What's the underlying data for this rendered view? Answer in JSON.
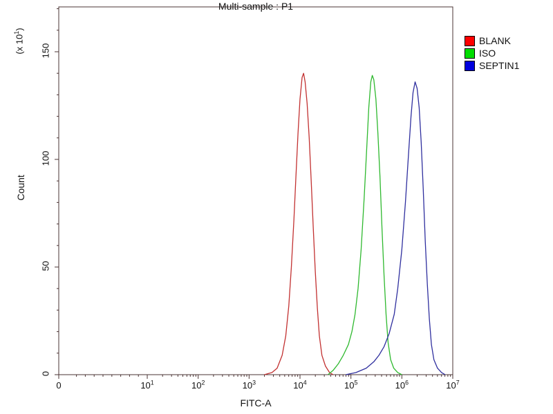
{
  "chart_data": {
    "type": "line",
    "subtype": "flow-cytometry-histogram-overlay",
    "title": "Multi-sample : P1",
    "xlabel": "FITC-A",
    "ylabel": "Count",
    "y_multiplier": {
      "base": "(x 10",
      "exp": "1",
      "close": ")"
    },
    "x_scale": "log",
    "x_ticks": [
      {
        "label": "0"
      },
      {
        "base": "10",
        "exp": "1"
      },
      {
        "base": "10",
        "exp": "2"
      },
      {
        "base": "10",
        "exp": "3"
      },
      {
        "base": "10",
        "exp": "4"
      },
      {
        "base": "10",
        "exp": "5"
      },
      {
        "base": "10",
        "exp": "6"
      },
      {
        "base": "10",
        "exp": "7"
      }
    ],
    "y_ticks": [
      0,
      50,
      100,
      150
    ],
    "ylim": [
      0,
      170
    ],
    "grid": false,
    "frame_color": "#4a3333",
    "legend_position": "top-right",
    "legend": [
      {
        "name": "BLANK",
        "color": "#ff0000"
      },
      {
        "name": "ISO",
        "color": "#00dd00"
      },
      {
        "name": "SEPTIN1",
        "color": "#0000dd"
      }
    ],
    "series": [
      {
        "name": "BLANK",
        "color": "#c23030",
        "peak_x": 11000,
        "peak_count": 140,
        "points_log10x_count": [
          [
            3.3,
            0
          ],
          [
            3.45,
            1
          ],
          [
            3.55,
            3
          ],
          [
            3.65,
            9
          ],
          [
            3.72,
            18
          ],
          [
            3.78,
            32
          ],
          [
            3.83,
            50
          ],
          [
            3.88,
            72
          ],
          [
            3.92,
            92
          ],
          [
            3.96,
            112
          ],
          [
            4.0,
            128
          ],
          [
            4.04,
            138
          ],
          [
            4.07,
            140
          ],
          [
            4.1,
            136
          ],
          [
            4.14,
            126
          ],
          [
            4.18,
            110
          ],
          [
            4.22,
            90
          ],
          [
            4.26,
            68
          ],
          [
            4.3,
            48
          ],
          [
            4.34,
            31
          ],
          [
            4.38,
            18
          ],
          [
            4.43,
            9
          ],
          [
            4.5,
            4
          ],
          [
            4.58,
            1
          ],
          [
            4.65,
            0
          ]
        ]
      },
      {
        "name": "ISO",
        "color": "#2db82d",
        "peak_x": 260000,
        "peak_count": 139,
        "points_log10x_count": [
          [
            4.55,
            0
          ],
          [
            4.65,
            2
          ],
          [
            4.75,
            5
          ],
          [
            4.85,
            9
          ],
          [
            4.95,
            14
          ],
          [
            5.02,
            20
          ],
          [
            5.08,
            28
          ],
          [
            5.14,
            40
          ],
          [
            5.2,
            58
          ],
          [
            5.26,
            82
          ],
          [
            5.31,
            105
          ],
          [
            5.35,
            124
          ],
          [
            5.39,
            136
          ],
          [
            5.42,
            139
          ],
          [
            5.45,
            137
          ],
          [
            5.49,
            128
          ],
          [
            5.53,
            112
          ],
          [
            5.57,
            92
          ],
          [
            5.61,
            68
          ],
          [
            5.65,
            46
          ],
          [
            5.69,
            28
          ],
          [
            5.73,
            15
          ],
          [
            5.78,
            7
          ],
          [
            5.84,
            3
          ],
          [
            5.92,
            1
          ],
          [
            6.0,
            0
          ]
        ]
      },
      {
        "name": "SEPTIN1",
        "color": "#2e2e9e",
        "peak_x": 1800000,
        "peak_count": 136,
        "points_log10x_count": [
          [
            4.9,
            0
          ],
          [
            5.1,
            1
          ],
          [
            5.3,
            3
          ],
          [
            5.45,
            6
          ],
          [
            5.55,
            9
          ],
          [
            5.65,
            13
          ],
          [
            5.75,
            19
          ],
          [
            5.85,
            28
          ],
          [
            5.92,
            40
          ],
          [
            6.0,
            58
          ],
          [
            6.07,
            80
          ],
          [
            6.13,
            102
          ],
          [
            6.18,
            120
          ],
          [
            6.22,
            131
          ],
          [
            6.26,
            136
          ],
          [
            6.3,
            133
          ],
          [
            6.34,
            124
          ],
          [
            6.38,
            108
          ],
          [
            6.42,
            86
          ],
          [
            6.46,
            62
          ],
          [
            6.5,
            42
          ],
          [
            6.54,
            26
          ],
          [
            6.58,
            14
          ],
          [
            6.63,
            7
          ],
          [
            6.7,
            3
          ],
          [
            6.78,
            1
          ],
          [
            6.85,
            0
          ]
        ]
      }
    ]
  }
}
